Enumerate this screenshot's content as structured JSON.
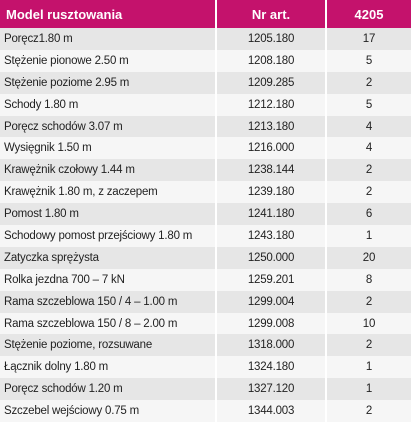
{
  "table": {
    "header": [
      "Model rusztowania",
      "Nr art.",
      "4205"
    ],
    "rows": [
      [
        "Poręcz1.80 m",
        "1205.180",
        "17"
      ],
      [
        "Stężenie pionowe 2.50 m",
        "1208.180",
        "5"
      ],
      [
        "Stężenie poziome 2.95 m",
        "1209.285",
        "2"
      ],
      [
        "Schody 1.80 m",
        "1212.180",
        "5"
      ],
      [
        "Poręcz schodów 3.07 m",
        "1213.180",
        "4"
      ],
      [
        "Wysięgnik 1.50 m",
        "1216.000",
        "4"
      ],
      [
        "Krawężnik czołowy 1.44 m",
        "1238.144",
        "2"
      ],
      [
        "Krawężnik 1.80 m, z zaczepem",
        "1239.180",
        "2"
      ],
      [
        "Pomost 1.80 m",
        "1241.180",
        "6"
      ],
      [
        "Schodowy pomost przejściowy 1.80 m",
        "1243.180",
        "1"
      ],
      [
        "Zatyczka sprężysta",
        "1250.000",
        "20"
      ],
      [
        "Rolka jezdna 700 – 7 kN",
        "1259.201",
        "8"
      ],
      [
        "Rama szczeblowa 150 / 4 – 1.00 m",
        "1299.004",
        "2"
      ],
      [
        "Rama szczeblowa 150 / 8 – 2.00 m",
        "1299.008",
        "10"
      ],
      [
        "Stężenie poziome, rozsuwane",
        "1318.000",
        "2"
      ],
      [
        "Łącznik dolny 1.80 m",
        "1324.180",
        "1"
      ],
      [
        "Poręcz schodów 1.20 m",
        "1327.120",
        "1"
      ],
      [
        "Szczebel wejściowy 0.75 m",
        "1344.003",
        "2"
      ]
    ]
  }
}
